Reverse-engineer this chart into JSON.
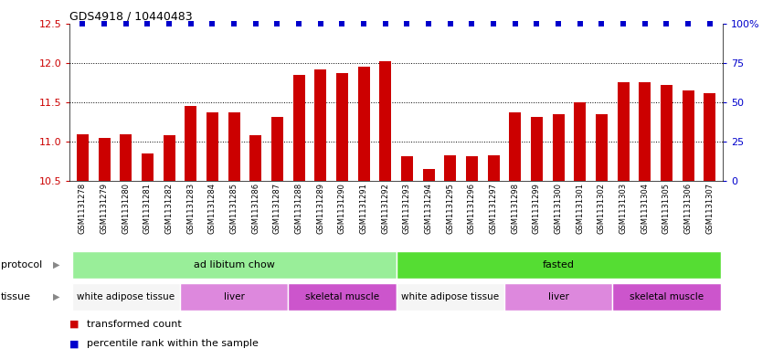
{
  "title": "GDS4918 / 10440483",
  "bar_values": [
    11.1,
    11.05,
    11.1,
    10.85,
    11.08,
    11.45,
    11.37,
    11.37,
    11.08,
    11.32,
    11.85,
    11.92,
    11.87,
    11.95,
    12.02,
    10.82,
    10.65,
    10.83,
    10.82,
    10.83,
    11.37,
    11.32,
    11.35,
    11.5,
    11.35,
    11.75,
    11.75,
    11.72,
    11.65,
    11.62
  ],
  "sample_labels": [
    "GSM1131278",
    "GSM1131279",
    "GSM1131280",
    "GSM1131281",
    "GSM1131282",
    "GSM1131283",
    "GSM1131284",
    "GSM1131285",
    "GSM1131286",
    "GSM1131287",
    "GSM1131288",
    "GSM1131289",
    "GSM1131290",
    "GSM1131291",
    "GSM1131292",
    "GSM1131293",
    "GSM1131294",
    "GSM1131295",
    "GSM1131296",
    "GSM1131297",
    "GSM1131298",
    "GSM1131299",
    "GSM1131300",
    "GSM1131301",
    "GSM1131302",
    "GSM1131303",
    "GSM1131304",
    "GSM1131305",
    "GSM1131306",
    "GSM1131307"
  ],
  "bar_color": "#cc0000",
  "percentile_color": "#0000cc",
  "ylim_left": [
    10.5,
    12.5
  ],
  "ylim_right": [
    0,
    100
  ],
  "yticks_left": [
    10.5,
    11.0,
    11.5,
    12.0,
    12.5
  ],
  "yticks_right": [
    0,
    25,
    50,
    75,
    100
  ],
  "ytick_labels_right": [
    "0",
    "25",
    "50",
    "75",
    "100%"
  ],
  "dotted_lines": [
    11.0,
    11.5,
    12.0
  ],
  "protocol_segments": [
    {
      "label": "ad libitum chow",
      "start": 0,
      "end": 14,
      "color": "#99ee99"
    },
    {
      "label": "fasted",
      "start": 15,
      "end": 29,
      "color": "#55dd33"
    }
  ],
  "tissue_segments": [
    {
      "label": "white adipose tissue",
      "start": 0,
      "end": 4,
      "color": "#f5f5f5"
    },
    {
      "label": "liver",
      "start": 5,
      "end": 9,
      "color": "#dd88dd"
    },
    {
      "label": "skeletal muscle",
      "start": 10,
      "end": 14,
      "color": "#cc55cc"
    },
    {
      "label": "white adipose tissue",
      "start": 15,
      "end": 19,
      "color": "#f5f5f5"
    },
    {
      "label": "liver",
      "start": 20,
      "end": 24,
      "color": "#dd88dd"
    },
    {
      "label": "skeletal muscle",
      "start": 25,
      "end": 29,
      "color": "#cc55cc"
    }
  ],
  "bg_color": "#ffffff",
  "bar_color_left": "#cc0000",
  "bar_color_right": "#0000cc",
  "legend": [
    {
      "label": "transformed count",
      "color": "#cc0000"
    },
    {
      "label": "percentile rank within the sample",
      "color": "#0000cc"
    }
  ]
}
